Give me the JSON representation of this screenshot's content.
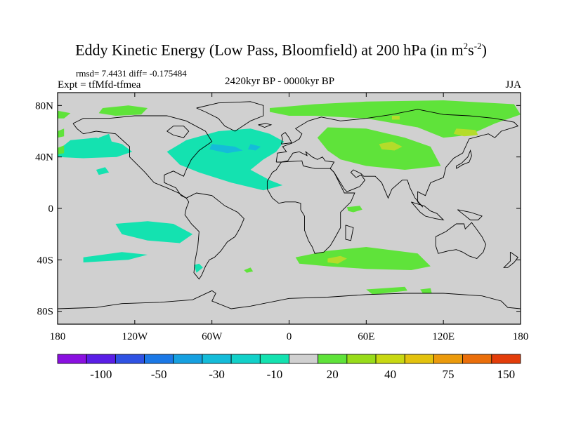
{
  "chart_data": {
    "type": "heatmap",
    "title": "Eddy Kinetic Energy (Low Pass, Bloomfield) at 200 hPa (in m",
    "title_unit_sup1": "2",
    "title_unit_mid": "s",
    "title_unit_sup2": "-2",
    "title_close": ")",
    "stats": "rmsd= 7.4431  diff= -0.175484",
    "experiment": "Expt = tfMfd-tfmea",
    "period": "2420kyr BP - 0000kyr BP",
    "season": "JJA",
    "xlim": [
      -180,
      180
    ],
    "ylim": [
      -90,
      90
    ],
    "x_ticks": [
      {
        "value": -180,
        "label": "180"
      },
      {
        "value": -120,
        "label": "120W"
      },
      {
        "value": -60,
        "label": "60W"
      },
      {
        "value": 0,
        "label": "0"
      },
      {
        "value": 60,
        "label": "60E"
      },
      {
        "value": 120,
        "label": "120E"
      },
      {
        "value": 180,
        "label": "180"
      }
    ],
    "y_ticks": [
      {
        "value": 80,
        "label": "80N"
      },
      {
        "value": 40,
        "label": "40N"
      },
      {
        "value": 0,
        "label": "0"
      },
      {
        "value": -40,
        "label": "40S"
      },
      {
        "value": -80,
        "label": "80S"
      }
    ],
    "colorbar": {
      "colors": [
        "#8a10e0",
        "#5a1ee6",
        "#2f52e3",
        "#1b78e6",
        "#16a0e0",
        "#14bcd9",
        "#12d1c9",
        "#14e2b0",
        "#d0d0d0",
        "#5fe33a",
        "#98dc1a",
        "#c8d812",
        "#e3c20e",
        "#eb9a0c",
        "#ea6e0a",
        "#e33d0a"
      ],
      "labels": [
        "-100",
        "-50",
        "-30",
        "-10",
        "20",
        "40",
        "75",
        "150"
      ]
    },
    "regions": [
      {
        "name": "arctic-east-siberia",
        "level": 20,
        "points": [
          [
            -15,
            78
          ],
          [
            20,
            81
          ],
          [
            60,
            83
          ],
          [
            120,
            84
          ],
          [
            175,
            81
          ],
          [
            180,
            73
          ],
          [
            160,
            66
          ],
          [
            140,
            57
          ],
          [
            120,
            55
          ],
          [
            100,
            63
          ],
          [
            60,
            70
          ],
          [
            20,
            72
          ],
          [
            0,
            72
          ],
          [
            -15,
            75
          ]
        ]
      },
      {
        "name": "arctic-canada",
        "level": 20,
        "points": [
          [
            -145,
            78
          ],
          [
            -125,
            80
          ],
          [
            -110,
            78
          ],
          [
            -115,
            73
          ],
          [
            -135,
            72
          ],
          [
            -148,
            74
          ]
        ]
      },
      {
        "name": "arctic-dateline",
        "level": 20,
        "points": [
          [
            -180,
            76
          ],
          [
            -170,
            74
          ],
          [
            -175,
            70
          ],
          [
            -180,
            70
          ]
        ]
      },
      {
        "name": "central-asia",
        "level": 20,
        "points": [
          [
            30,
            63
          ],
          [
            60,
            62
          ],
          [
            90,
            55
          ],
          [
            110,
            48
          ],
          [
            118,
            33
          ],
          [
            90,
            30
          ],
          [
            60,
            33
          ],
          [
            40,
            38
          ],
          [
            30,
            45
          ],
          [
            22,
            55
          ]
        ]
      },
      {
        "name": "north-asia-core",
        "level": 40,
        "points": [
          [
            70,
            50
          ],
          [
            80,
            52
          ],
          [
            88,
            48
          ],
          [
            82,
            45
          ],
          [
            72,
            46
          ]
        ]
      },
      {
        "name": "east-siberia-core",
        "level": 40,
        "points": [
          [
            130,
            62
          ],
          [
            145,
            61
          ],
          [
            147,
            57
          ],
          [
            136,
            56
          ],
          [
            128,
            58
          ]
        ]
      },
      {
        "name": "east-siberia-small-core",
        "level": 40,
        "points": [
          [
            80,
            72
          ],
          [
            86,
            72
          ],
          [
            86,
            69
          ],
          [
            80,
            69
          ]
        ]
      },
      {
        "name": "east-asia-small",
        "level": 20,
        "points": [
          [
            90,
            36
          ],
          [
            99,
            37
          ],
          [
            98,
            32
          ],
          [
            90,
            32
          ]
        ]
      },
      {
        "name": "pacific-north",
        "level": -10,
        "points": [
          [
            -180,
            45
          ],
          [
            -170,
            53
          ],
          [
            -150,
            55
          ],
          [
            -130,
            50
          ],
          [
            -122,
            44
          ],
          [
            -134,
            40
          ],
          [
            -160,
            39
          ],
          [
            -180,
            40
          ]
        ]
      },
      {
        "name": "pacific-south-cell",
        "level": -10,
        "points": [
          [
            -150,
            30
          ],
          [
            -143,
            32
          ],
          [
            -140,
            28
          ],
          [
            -148,
            26
          ]
        ]
      },
      {
        "name": "atlantic-north",
        "level": -10,
        "points": [
          [
            -95,
            44
          ],
          [
            -80,
            53
          ],
          [
            -55,
            60
          ],
          [
            -30,
            62
          ],
          [
            -15,
            58
          ],
          [
            -4,
            52
          ],
          [
            -10,
            44
          ],
          [
            -20,
            38
          ],
          [
            -30,
            30
          ],
          [
            -15,
            22
          ],
          [
            -5,
            18
          ],
          [
            -20,
            14
          ],
          [
            -45,
            20
          ],
          [
            -70,
            28
          ],
          [
            -85,
            34
          ]
        ]
      },
      {
        "name": "atlantic-core",
        "level": -30,
        "points": [
          [
            -60,
            50
          ],
          [
            -42,
            48
          ],
          [
            -36,
            45
          ],
          [
            -48,
            43
          ],
          [
            -62,
            46
          ]
        ]
      },
      {
        "name": "atlantic-core-2",
        "level": -30,
        "points": [
          [
            -30,
            50
          ],
          [
            -22,
            48
          ],
          [
            -26,
            45
          ],
          [
            -32,
            46
          ]
        ]
      },
      {
        "name": "pacific-east-south",
        "level": -10,
        "points": [
          [
            -135,
            -12
          ],
          [
            -110,
            -10
          ],
          [
            -90,
            -12
          ],
          [
            -75,
            -20
          ],
          [
            -85,
            -27
          ],
          [
            -110,
            -25
          ],
          [
            -130,
            -20
          ]
        ]
      },
      {
        "name": "south-pacific-east",
        "level": -10,
        "points": [
          [
            -160,
            -38
          ],
          [
            -130,
            -34
          ],
          [
            -110,
            -36
          ],
          [
            -125,
            -40
          ],
          [
            -160,
            -42
          ]
        ]
      },
      {
        "name": "south-america-south",
        "level": -10,
        "points": [
          [
            -72,
            -50
          ],
          [
            -67,
            -46
          ],
          [
            -70,
            -43
          ],
          [
            -74,
            -44
          ]
        ]
      },
      {
        "name": "atlantic-south-small",
        "level": 20,
        "points": [
          [
            -35,
            -48
          ],
          [
            -30,
            -46
          ],
          [
            -28,
            -49
          ],
          [
            -33,
            -50
          ]
        ]
      },
      {
        "name": "africa-equatorial",
        "level": 20,
        "points": [
          [
            45,
            1
          ],
          [
            55,
            2
          ],
          [
            57,
            -1
          ],
          [
            50,
            -3
          ],
          [
            46,
            -2
          ]
        ]
      },
      {
        "name": "indian-south",
        "level": 20,
        "points": [
          [
            5,
            -38
          ],
          [
            30,
            -33
          ],
          [
            60,
            -30
          ],
          [
            100,
            -35
          ],
          [
            110,
            -45
          ],
          [
            95,
            -48
          ],
          [
            60,
            -47
          ],
          [
            30,
            -45
          ],
          [
            8,
            -43
          ]
        ]
      },
      {
        "name": "indian-south-core",
        "level": 40,
        "points": [
          [
            30,
            -39
          ],
          [
            40,
            -37
          ],
          [
            45,
            -39
          ],
          [
            38,
            -43
          ],
          [
            30,
            -42
          ]
        ]
      },
      {
        "name": "antarctic-ring",
        "level": 20,
        "points": [
          [
            60,
            -63
          ],
          [
            90,
            -61
          ],
          [
            92,
            -64
          ],
          [
            65,
            -67
          ]
        ]
      },
      {
        "name": "antarctic-ring-2",
        "level": 20,
        "points": [
          [
            102,
            -63
          ],
          [
            110,
            -62
          ],
          [
            111,
            -66
          ],
          [
            104,
            -66
          ]
        ]
      },
      {
        "name": "west-pacific-1",
        "level": 20,
        "points": [
          [
            -180,
            60
          ],
          [
            -175,
            62
          ],
          [
            -175,
            56
          ],
          [
            -180,
            55
          ]
        ]
      },
      {
        "name": "west-pacific-2",
        "level": 20,
        "points": [
          [
            -180,
            47
          ],
          [
            -175,
            49
          ],
          [
            -175,
            43
          ],
          [
            -180,
            42
          ]
        ]
      },
      {
        "name": "north-pacific-small",
        "level": -10,
        "points": [
          [
            -148,
            55
          ],
          [
            -140,
            58
          ],
          [
            -138,
            52
          ],
          [
            -146,
            50
          ]
        ]
      }
    ]
  }
}
